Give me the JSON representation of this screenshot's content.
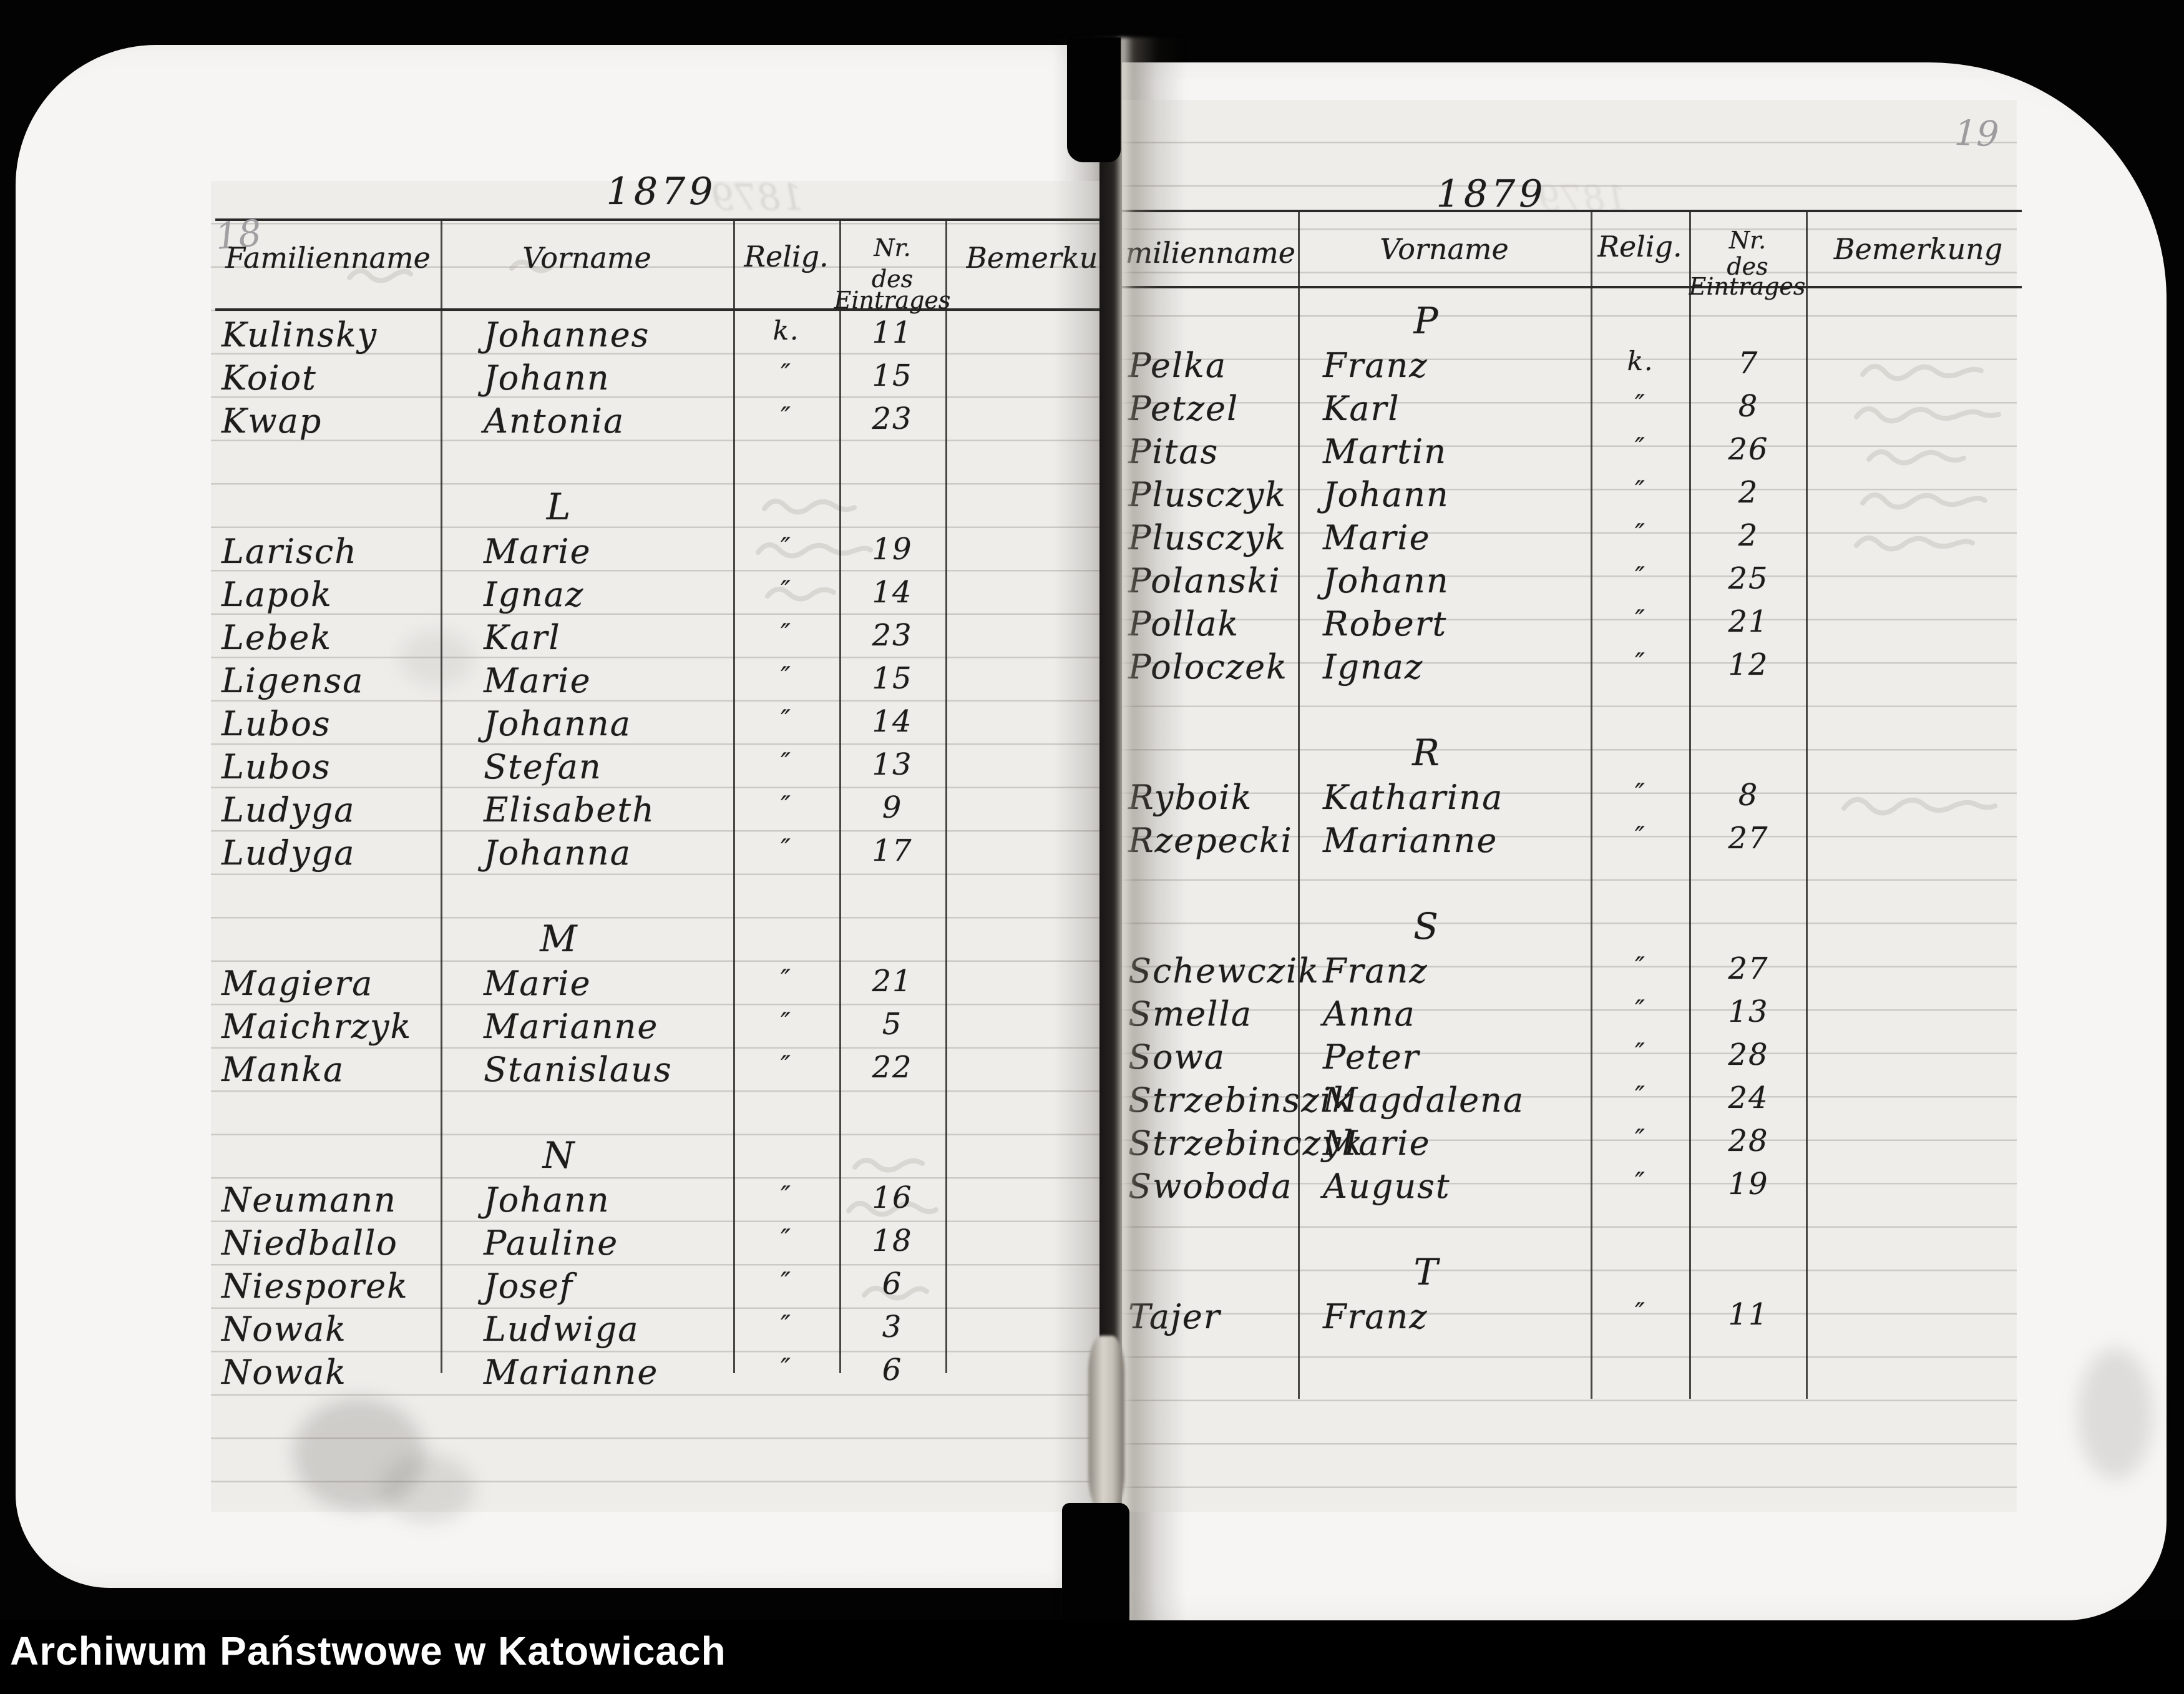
{
  "archive_bar": {
    "text": "Archiwum Państwowe w Katowicach"
  },
  "left_page": {
    "page_number": "18",
    "year": "1879",
    "headers": {
      "familienname": "Familienname",
      "vorname": "Vorname",
      "relig": "Relig.",
      "nr_line1": "Nr.",
      "nr_line2": "des",
      "nr_line3": "Eintrages",
      "bemerkung": "Bemerkung"
    },
    "rows": [
      {
        "type": "entry",
        "name": "Kulinsky",
        "vorname": "Johannes",
        "relig": "k.",
        "nr": "11"
      },
      {
        "type": "entry",
        "name": "Koiot",
        "vorname": "Johann",
        "relig": "″",
        "nr": "15"
      },
      {
        "type": "entry",
        "name": "Kwap",
        "vorname": "Antonia",
        "relig": "″",
        "nr": "23"
      },
      {
        "type": "section",
        "letter": "L"
      },
      {
        "type": "entry",
        "name": "Larisch",
        "vorname": "Marie",
        "relig": "″",
        "nr": "19"
      },
      {
        "type": "entry",
        "name": "Lapok",
        "vorname": "Ignaz",
        "relig": "″",
        "nr": "14"
      },
      {
        "type": "entry",
        "name": "Lebek",
        "vorname": "Karl",
        "relig": "″",
        "nr": "23"
      },
      {
        "type": "entry",
        "name": "Ligensa",
        "vorname": "Marie",
        "relig": "″",
        "nr": "15"
      },
      {
        "type": "entry",
        "name": "Lubos",
        "vorname": "Johanna",
        "relig": "″",
        "nr": "14"
      },
      {
        "type": "entry",
        "name": "Lubos",
        "vorname": "Stefan",
        "relig": "″",
        "nr": "13"
      },
      {
        "type": "entry",
        "name": "Ludyga",
        "vorname": "Elisabeth",
        "relig": "″",
        "nr": "9"
      },
      {
        "type": "entry",
        "name": "Ludyga",
        "vorname": "Johanna",
        "relig": "″",
        "nr": "17"
      },
      {
        "type": "section",
        "letter": "M"
      },
      {
        "type": "entry",
        "name": "Magiera",
        "vorname": "Marie",
        "relig": "″",
        "nr": "21"
      },
      {
        "type": "entry",
        "name": "Maichrzyk",
        "vorname": "Marianne",
        "relig": "″",
        "nr": "5"
      },
      {
        "type": "entry",
        "name": "Manka",
        "vorname": "Stanislaus",
        "relig": "″",
        "nr": "22"
      },
      {
        "type": "section",
        "letter": "N"
      },
      {
        "type": "entry",
        "name": "Neumann",
        "vorname": "Johann",
        "relig": "″",
        "nr": "16"
      },
      {
        "type": "entry",
        "name": "Niedballo",
        "vorname": "Pauline",
        "relig": "″",
        "nr": "18"
      },
      {
        "type": "entry",
        "name": "Niesporek",
        "vorname": "Josef",
        "relig": "″",
        "nr": "6"
      },
      {
        "type": "entry",
        "name": "Nowak",
        "vorname": "Ludwiga",
        "relig": "″",
        "nr": "3"
      },
      {
        "type": "entry",
        "name": "Nowak",
        "vorname": "Marianne",
        "relig": "″",
        "nr": "6"
      }
    ]
  },
  "right_page": {
    "page_number": "19",
    "year": "1879",
    "headers": {
      "familienname": "Familienname",
      "vorname": "Vorname",
      "relig": "Relig.",
      "nr_line1": "Nr.",
      "nr_line2": "des",
      "nr_line3": "Eintrages",
      "bemerkung": "Bemerkung"
    },
    "rows": [
      {
        "type": "section",
        "letter": "P"
      },
      {
        "type": "entry",
        "name": "Pelka",
        "vorname": "Franz",
        "relig": "k.",
        "nr": "7"
      },
      {
        "type": "entry",
        "name": "Petzel",
        "vorname": "Karl",
        "relig": "″",
        "nr": "8"
      },
      {
        "type": "entry",
        "name": "Pitas",
        "vorname": "Martin",
        "relig": "″",
        "nr": "26"
      },
      {
        "type": "entry",
        "name": "Plusczyk",
        "vorname": "Johann",
        "relig": "″",
        "nr": "2"
      },
      {
        "type": "entry",
        "name": "Plusczyk",
        "vorname": "Marie",
        "relig": "″",
        "nr": "2"
      },
      {
        "type": "entry",
        "name": "Polanski",
        "vorname": "Johann",
        "relig": "″",
        "nr": "25"
      },
      {
        "type": "entry",
        "name": "Pollak",
        "vorname": "Robert",
        "relig": "″",
        "nr": "21"
      },
      {
        "type": "entry",
        "name": "Poloczek",
        "vorname": "Ignaz",
        "relig": "″",
        "nr": "12"
      },
      {
        "type": "section",
        "letter": "R"
      },
      {
        "type": "entry",
        "name": "Ryboik",
        "vorname": "Katharina",
        "relig": "″",
        "nr": "8"
      },
      {
        "type": "entry",
        "name": "Rzepecki",
        "vorname": "Marianne",
        "relig": "″",
        "nr": "27"
      },
      {
        "type": "section",
        "letter": "S"
      },
      {
        "type": "entry",
        "name": "Schewczik",
        "vorname": "Franz",
        "relig": "″",
        "nr": "27"
      },
      {
        "type": "entry",
        "name": "Smella",
        "vorname": "Anna",
        "relig": "″",
        "nr": "13"
      },
      {
        "type": "entry",
        "name": "Sowa",
        "vorname": "Peter",
        "relig": "″",
        "nr": "28"
      },
      {
        "type": "entry",
        "name": "Strzebinszik",
        "vorname": "Magdalena",
        "relig": "″",
        "nr": "24"
      },
      {
        "type": "entry",
        "name": "Strzebinczyk",
        "vorname": "Marie",
        "relig": "″",
        "nr": "28"
      },
      {
        "type": "entry",
        "name": "Swoboda",
        "vorname": "August",
        "relig": "″",
        "nr": "19"
      },
      {
        "type": "section",
        "letter": "T"
      },
      {
        "type": "entry",
        "name": "Tajer",
        "vorname": "Franz",
        "relig": "″",
        "nr": "11"
      }
    ]
  }
}
